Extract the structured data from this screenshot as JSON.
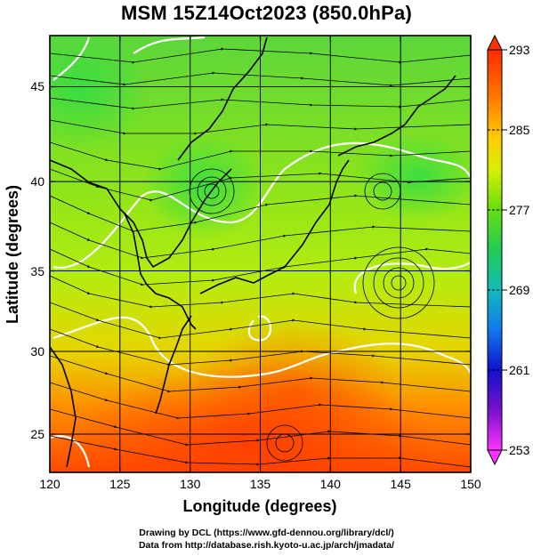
{
  "title": "MSM 15Z14Oct2023 (850.0hPa)",
  "xlabel": "Longitude (degrees)",
  "ylabel": "Latitude  (degrees)",
  "x_ticks": [
    "120",
    "125",
    "130",
    "135",
    "140",
    "145",
    "150"
  ],
  "y_ticks": [
    "25",
    "30",
    "35",
    "40",
    "45"
  ],
  "colorbar_ticks": [
    "293",
    "285",
    "277",
    "269",
    "261",
    "253"
  ],
  "credits": [
    "Drawing by DCL (https://www.gfd-dennou.org/library/dcl/)",
    "Data from http://database.rish.kyoto-u.ac.jp/arch/jmadata/"
  ],
  "chart_data": {
    "type": "heatmap",
    "variable": "temperature with wind streamlines",
    "x_range": [
      120,
      150
    ],
    "y_range": [
      22.4,
      47.6
    ],
    "colorbar_range": [
      253,
      293
    ],
    "colors": {
      "warm": "#ff3300",
      "neutral": "#9ee600",
      "cool": "#33dd33",
      "cold": "#1f3fff",
      "coldest": "#ff33ff"
    }
  }
}
